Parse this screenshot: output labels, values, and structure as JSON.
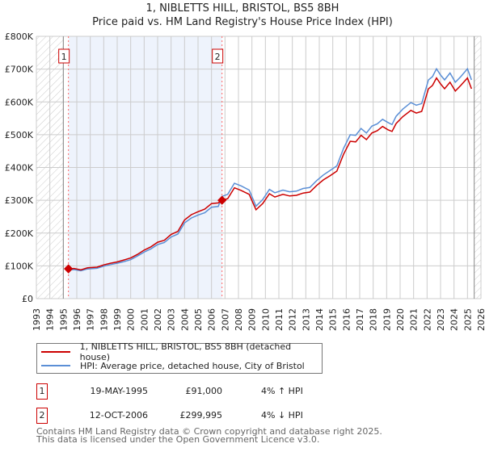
{
  "title": {
    "line1": "1, NIBLETTS HILL, BRISTOL, BS5 8BH",
    "line2": "Price paid vs. HM Land Registry's House Price Index (HPI)"
  },
  "chart_data": {
    "type": "line",
    "title": "1, NIBLETTS HILL, BRISTOL, BS5 8BH — Price paid vs. HM Land Registry's House Price Index (HPI)",
    "xlim": [
      1993,
      2026
    ],
    "ylim": [
      0,
      800000
    ],
    "x_ticks": [
      "1993",
      "1994",
      "1995",
      "1996",
      "1997",
      "1998",
      "1999",
      "2000",
      "2001",
      "2002",
      "2003",
      "2004",
      "2005",
      "2006",
      "2007",
      "2008",
      "2009",
      "2010",
      "2011",
      "2012",
      "2013",
      "2014",
      "2015",
      "2016",
      "2017",
      "2018",
      "2019",
      "2020",
      "2021",
      "2022",
      "2023",
      "2024",
      "2025",
      "2026"
    ],
    "y_ticks": [
      {
        "v": 0,
        "label": "£0"
      },
      {
        "v": 100000,
        "label": "£100K"
      },
      {
        "v": 200000,
        "label": "£200K"
      },
      {
        "v": 300000,
        "label": "£300K"
      },
      {
        "v": 400000,
        "label": "£400K"
      },
      {
        "v": 500000,
        "label": "£500K"
      },
      {
        "v": 600000,
        "label": "£600K"
      },
      {
        "v": 700000,
        "label": "£700K"
      },
      {
        "v": 800000,
        "label": "£800K"
      }
    ],
    "grid": true,
    "x": [
      1995.38,
      1995.8,
      1996.3,
      1996.8,
      1997.5,
      1998,
      1998.5,
      1999,
      1999.5,
      2000,
      2000.5,
      2001,
      2001.5,
      2002,
      2002.5,
      2003,
      2003.5,
      2004,
      2004.5,
      2005,
      2005.5,
      2006,
      2006.5,
      2006.78,
      2007.2,
      2007.7,
      2008.2,
      2008.8,
      2009.3,
      2009.8,
      2010.3,
      2010.7,
      2011.3,
      2011.8,
      2012.3,
      2012.8,
      2013.3,
      2013.8,
      2014.3,
      2014.8,
      2015.3,
      2015.8,
      2016.3,
      2016.7,
      2017.1,
      2017.5,
      2017.9,
      2018.3,
      2018.7,
      2019.1,
      2019.4,
      2019.7,
      2020.2,
      2020.8,
      2021.2,
      2021.6,
      2022.1,
      2022.4,
      2022.7,
      2023.0,
      2023.3,
      2023.7,
      2024.1,
      2024.5,
      2025.0,
      2025.3
    ],
    "series": [
      {
        "name": "1, NIBLETTS HILL, BRISTOL, BS5 8BH (detached house)",
        "color": "#cc0000",
        "values": [
          91000,
          92000,
          88000,
          94000,
          96000,
          103000,
          108000,
          112000,
          118000,
          124000,
          135000,
          148000,
          158000,
          172000,
          178000,
          196000,
          205000,
          240000,
          256000,
          265000,
          273000,
          290000,
          292000,
          300000,
          305000,
          338000,
          330000,
          318000,
          271000,
          290000,
          320000,
          310000,
          318000,
          313000,
          315000,
          322000,
          325000,
          345000,
          362000,
          375000,
          389000,
          440000,
          480000,
          478000,
          498000,
          485000,
          505000,
          512000,
          525000,
          515000,
          510000,
          534000,
          555000,
          574000,
          566000,
          571000,
          640000,
          650000,
          673000,
          655000,
          640000,
          660000,
          633000,
          650000,
          673000,
          640000
        ]
      },
      {
        "name": "HPI: Average price, detached house, City of Bristol",
        "color": "#5b8fd6",
        "values": [
          87500,
          88500,
          85000,
          90500,
          92500,
          99000,
          104000,
          108000,
          113000,
          119000,
          130000,
          142000,
          152000,
          165000,
          171000,
          188000,
          197000,
          231000,
          246000,
          255000,
          262000,
          279000,
          281000,
          312000,
          318000,
          352000,
          344000,
          331000,
          282000,
          302000,
          333000,
          323000,
          331000,
          326000,
          328000,
          336000,
          339000,
          360000,
          377000,
          391000,
          405000,
          458000,
          500000,
          498000,
          519000,
          505000,
          526000,
          533000,
          547000,
          537000,
          531000,
          556000,
          578000,
          598000,
          590000,
          595000,
          667000,
          677000,
          701000,
          682000,
          667000,
          688000,
          660000,
          677000,
          701000,
          667000
        ]
      }
    ],
    "sales": [
      {
        "label": "1",
        "x": 1995.38,
        "value": 91000
      },
      {
        "label": "2",
        "x": 2006.78,
        "value": 299995
      }
    ],
    "legend": "below"
  },
  "legend": {
    "red": "1, NIBLETTS HILL, BRISTOL, BS5 8BH (detached house)",
    "blue": "HPI: Average price, detached house, City of Bristol"
  },
  "sales_table": [
    {
      "num": "1",
      "date": "19-MAY-1995",
      "price": "£91,000",
      "hpi": "4% ↑ HPI"
    },
    {
      "num": "2",
      "date": "12-OCT-2006",
      "price": "£299,995",
      "hpi": "4% ↓ HPI"
    }
  ],
  "footer": {
    "line1": "Contains HM Land Registry data © Crown copyright and database right 2025.",
    "line2": "This data is licensed under the Open Government Licence v3.0."
  }
}
